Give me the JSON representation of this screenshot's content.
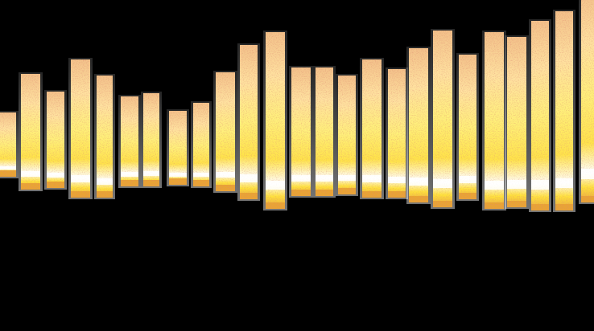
{
  "palette": {
    "background": "#000000",
    "cream": "#ffe6a8",
    "peach": "#f6c98a",
    "yellow": "#ffec45",
    "orange": "#e0902f",
    "pink": "#d99a92",
    "red": "#b8322a",
    "white": "#ffffff"
  },
  "columns": [
    {
      "level": 0.2
    },
    {
      "level": 0.36
    },
    {
      "level": 0.3
    },
    {
      "level": 0.43
    },
    {
      "level": 0.38
    },
    {
      "level": 0.28
    },
    {
      "level": 0.29
    },
    {
      "level": 0.23
    },
    {
      "level": 0.26
    },
    {
      "level": 0.37
    },
    {
      "level": 0.48
    },
    {
      "level": 0.55
    },
    {
      "level": 0.4
    },
    {
      "level": 0.4
    },
    {
      "level": 0.37
    },
    {
      "level": 0.43
    },
    {
      "level": 0.4
    },
    {
      "level": 0.48
    },
    {
      "level": 0.55
    },
    {
      "level": 0.45
    },
    {
      "level": 0.55
    },
    {
      "level": 0.53
    },
    {
      "level": 0.59
    },
    {
      "level": 0.62
    },
    {
      "level": 0.66
    }
  ]
}
